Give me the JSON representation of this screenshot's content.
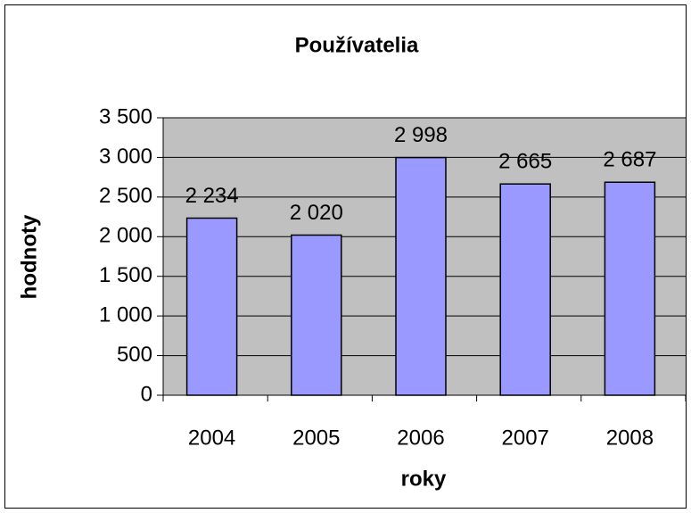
{
  "chart_data": {
    "type": "bar",
    "title": "Používatelia",
    "x_label": "roky",
    "y_label": "hodnoty",
    "categories": [
      "2004",
      "2005",
      "2006",
      "2007",
      "2008"
    ],
    "values": [
      2234,
      2020,
      2998,
      2665,
      2687
    ],
    "value_labels": [
      "2 234",
      "2 020",
      "2 998",
      "2 665",
      "2 687"
    ],
    "color": "#9999ff",
    "ylim": [
      0,
      3500
    ],
    "yticks": [
      0,
      500,
      {
        "value": 1000,
        "label": "1 000"
      },
      {
        "value": 1500,
        "label": "1 500"
      },
      {
        "value": 2000,
        "label": "2 000"
      },
      {
        "value": 2500,
        "label": "2 500"
      },
      {
        "value": 3000,
        "label": "3 000"
      },
      {
        "value": 3500,
        "label": "3 500"
      }
    ],
    "grid": true
  }
}
